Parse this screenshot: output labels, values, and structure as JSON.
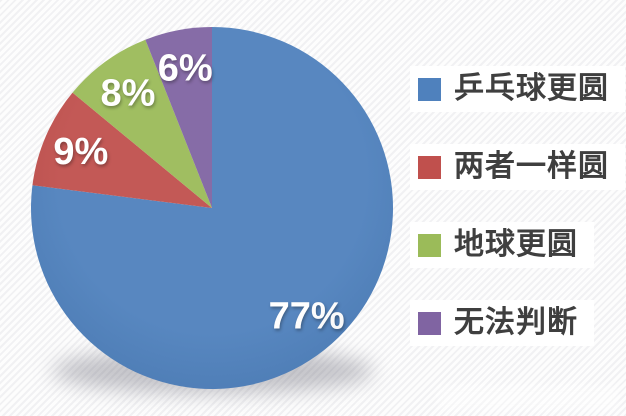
{
  "chart_data": {
    "type": "pie",
    "title": "",
    "categories": [
      "乒乓球更圆",
      "两者一样圆",
      "地球更圆",
      "无法判断"
    ],
    "values": [
      77,
      9,
      8,
      6
    ],
    "labels": [
      "77%",
      "9%",
      "8%",
      "6%"
    ],
    "colors": [
      "#4F81BD",
      "#C0504D",
      "#9BBB59",
      "#8064A2"
    ],
    "start_angle_deg": 0,
    "direction": "clockwise",
    "legend_position": "right",
    "label_color": "#FFFFFF",
    "legend_text_color": "#3F3F3F"
  }
}
